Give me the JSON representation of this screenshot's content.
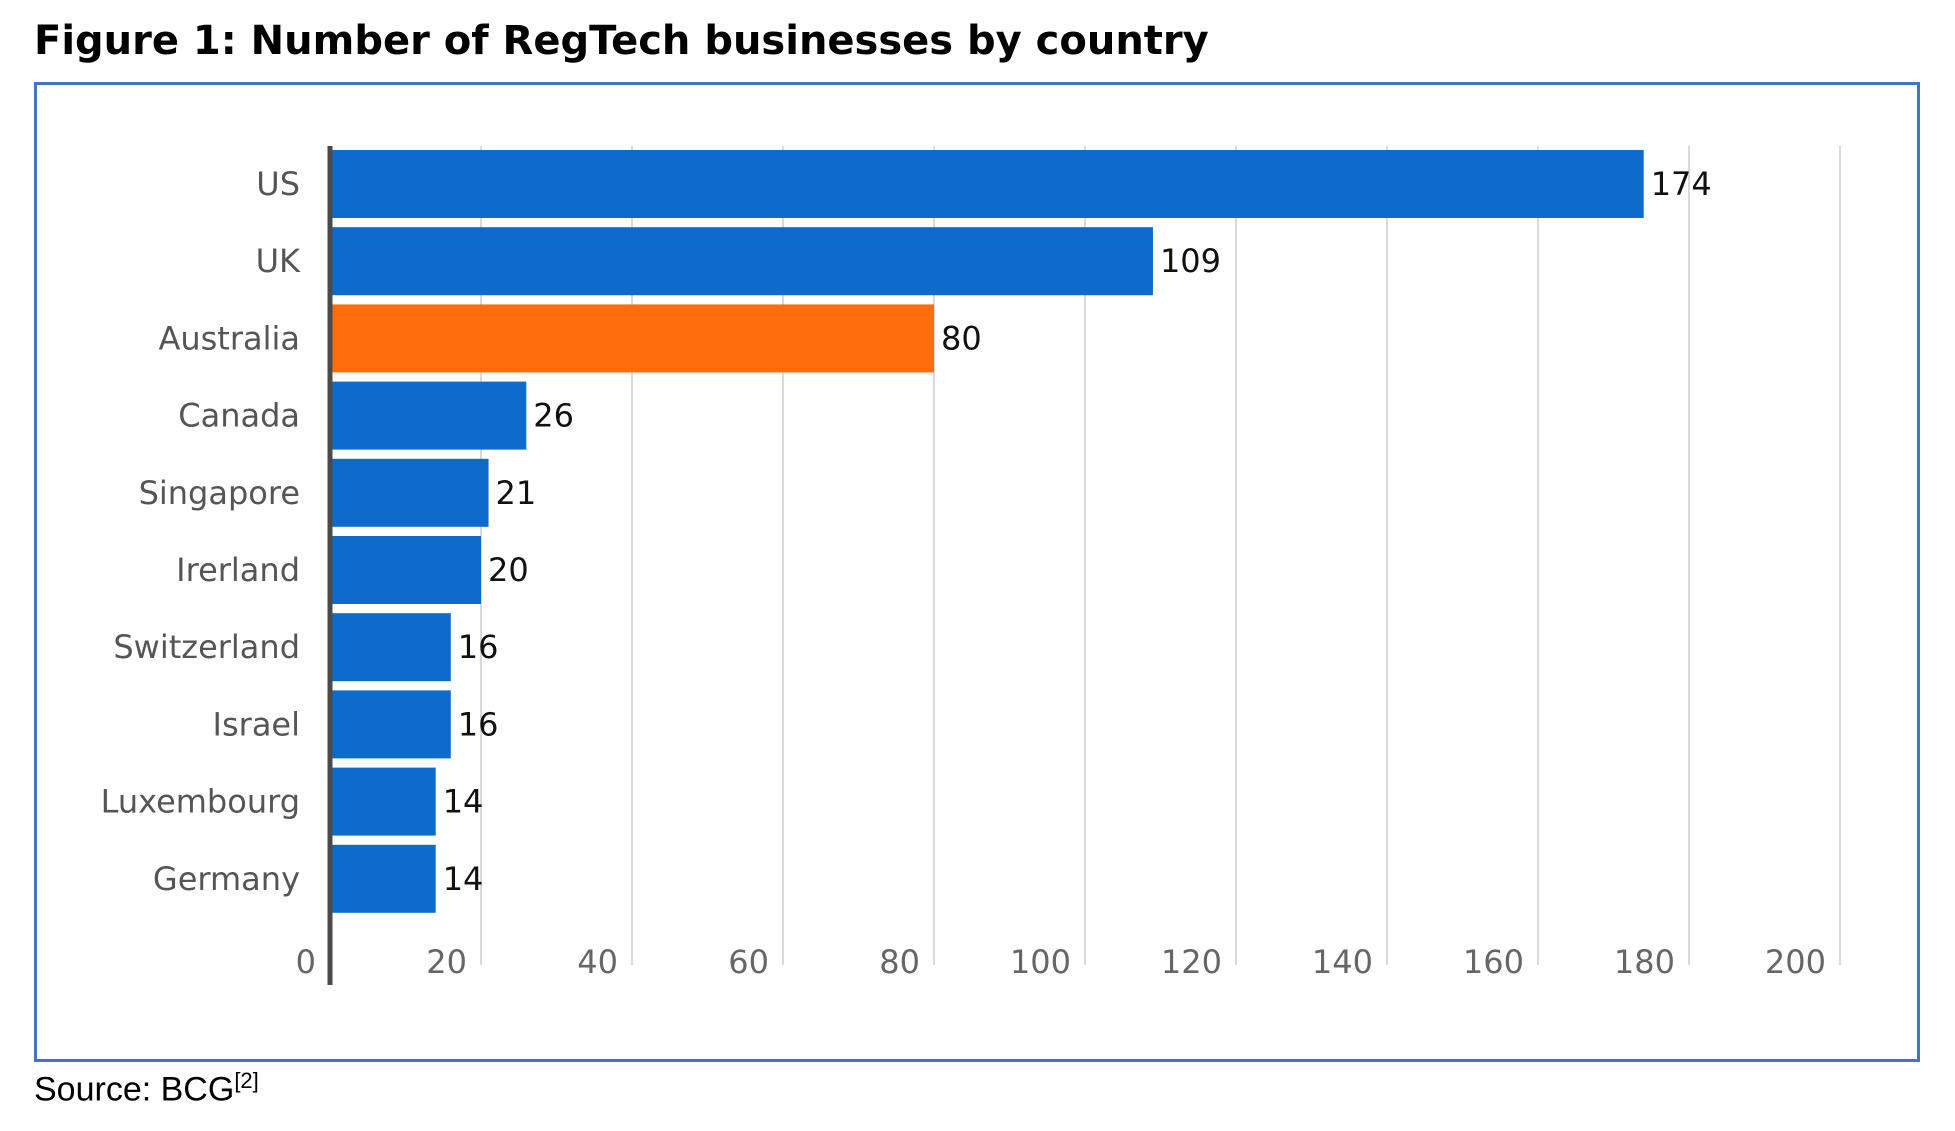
{
  "figure": {
    "title": "Figure 1: Number of RegTech businesses by country",
    "source_label": "Source: BCG",
    "source_ref": "[2]"
  },
  "chart_data": {
    "type": "bar",
    "orientation": "horizontal",
    "title": "",
    "xlabel": "",
    "ylabel": "",
    "categories": [
      "US",
      "UK",
      "Australia",
      "Canada",
      "Singapore",
      "Irerland",
      "Switzerland",
      "Israel",
      "Luxembourg",
      "Germany"
    ],
    "values": [
      174,
      109,
      80,
      26,
      21,
      20,
      16,
      16,
      14,
      14
    ],
    "bar_colors": [
      "#0f6bcb",
      "#0f6bcb",
      "#ff6d0d",
      "#0f6bcb",
      "#0f6bcb",
      "#0f6bcb",
      "#0f6bcb",
      "#0f6bcb",
      "#0f6bcb",
      "#0f6bcb"
    ],
    "highlight": "Australia",
    "xlim": [
      0,
      200
    ],
    "xticks": [
      0,
      20,
      40,
      60,
      80,
      100,
      120,
      140,
      160,
      180,
      200
    ],
    "grid": true,
    "legend": "none",
    "data_labels": true
  }
}
